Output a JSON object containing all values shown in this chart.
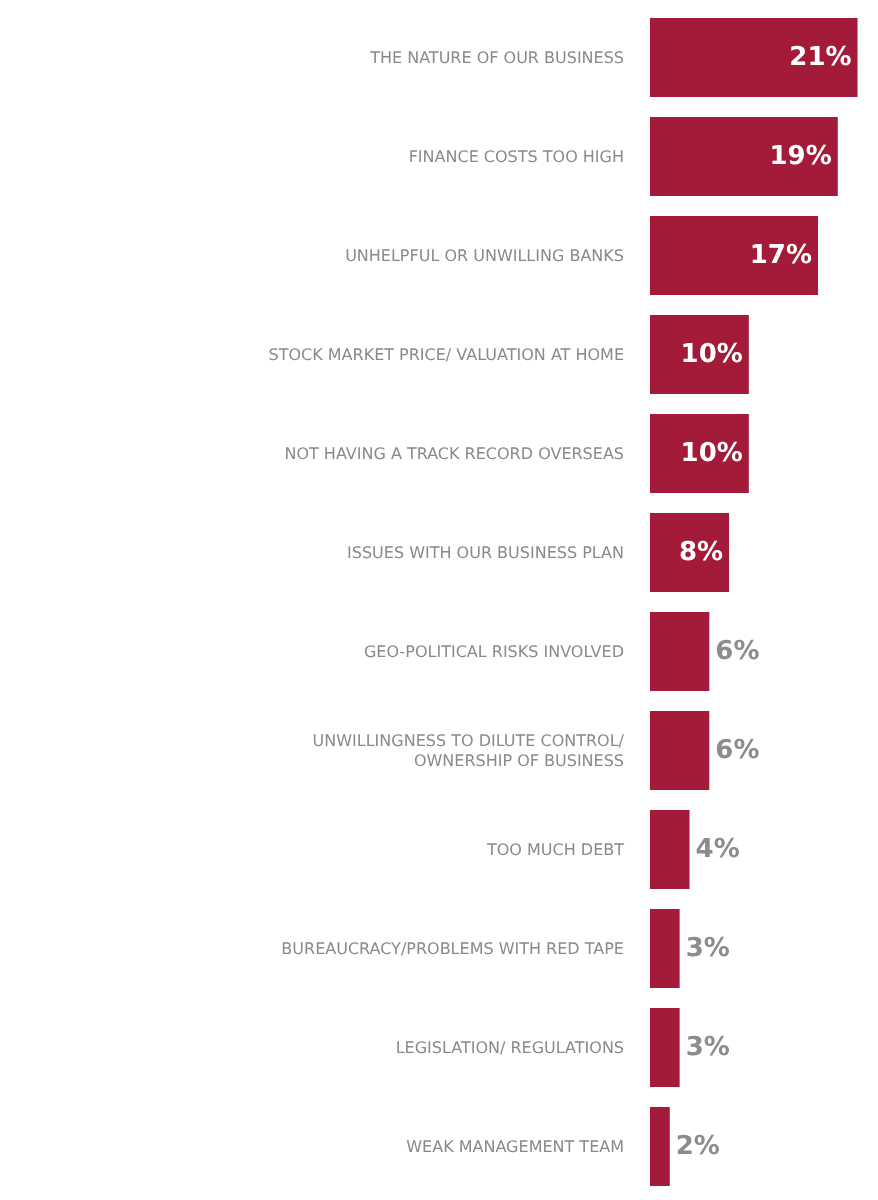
{
  "chart_data": {
    "type": "bar",
    "orientation": "horizontal",
    "categories": [
      "THE NATURE OF OUR BUSINESS",
      "FINANCE COSTS TOO HIGH",
      "UNHELPFUL OR UNWILLING BANKS",
      "STOCK MARKET PRICE/ VALUATION AT HOME",
      "NOT HAVING A TRACK RECORD OVERSEAS",
      "ISSUES WITH OUR BUSINESS PLAN",
      "GEO-POLITICAL RISKS INVOLVED",
      "UNWILLINGNESS TO DILUTE CONTROL/ OWNERSHIP OF BUSINESS",
      "TOO MUCH DEBT",
      "BUREAUCRACY/PROBLEMS WITH RED TAPE",
      "LEGISLATION/ REGULATIONS",
      "WEAK MANAGEMENT TEAM"
    ],
    "values": [
      21,
      19,
      17,
      10,
      10,
      8,
      6,
      6,
      4,
      3,
      3,
      2
    ],
    "value_labels": [
      "21%",
      "19%",
      "17%",
      "10%",
      "10%",
      "8%",
      "6%",
      "6%",
      "4%",
      "3%",
      "3%",
      "2%"
    ],
    "color": "#a31b38"
  }
}
